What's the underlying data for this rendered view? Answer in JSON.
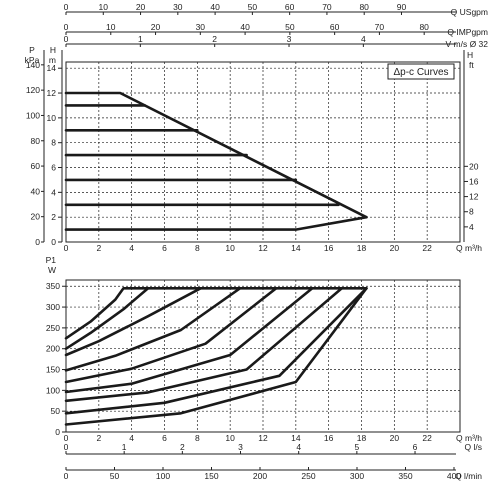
{
  "chart_data": [
    {
      "type": "line",
      "legend_box": "Δp-c Curves",
      "top_scales": [
        {
          "label": "Q USgpm",
          "ticks": [
            "0",
            "10",
            "20",
            "30",
            "40",
            "50",
            "60",
            "70",
            "80",
            "90"
          ]
        },
        {
          "label": "Q IMPgpm",
          "ticks": [
            "0",
            "10",
            "20",
            "30",
            "40",
            "50",
            "60",
            "70",
            "80"
          ]
        },
        {
          "label": "V m/s Ø 32",
          "ticks": [
            "0",
            "1",
            "2",
            "3",
            "4"
          ]
        }
      ],
      "y_left_kpa": {
        "label": [
          "P",
          "kPa"
        ],
        "ticks": [
          "0",
          "20",
          "40",
          "60",
          "80",
          "100",
          "120",
          "140"
        ]
      },
      "y_left_m": {
        "label": [
          "H",
          "m"
        ],
        "ticks": [
          "0",
          "2",
          "4",
          "6",
          "8",
          "10",
          "12",
          "14"
        ],
        "ylim": [
          0,
          14.5
        ]
      },
      "y_right_ft": {
        "label": [
          "H",
          "ft"
        ],
        "ticks": [
          "4",
          "8",
          "12",
          "16",
          "20"
        ]
      },
      "x": {
        "label": "Q m³/h",
        "ticks": [
          "0",
          "2",
          "4",
          "6",
          "8",
          "10",
          "12",
          "14",
          "16",
          "18",
          "20",
          "22"
        ],
        "xlim": [
          0,
          24
        ]
      },
      "series": [
        {
          "points": [
            [
              0,
              12
            ],
            [
              3.3,
              12
            ],
            [
              18.3,
              2
            ]
          ]
        },
        {
          "points": [
            [
              0,
              11
            ],
            [
              4.8,
              11
            ]
          ]
        },
        {
          "points": [
            [
              0,
              9
            ],
            [
              8,
              9
            ]
          ]
        },
        {
          "points": [
            [
              0,
              7
            ],
            [
              11,
              7
            ]
          ]
        },
        {
          "points": [
            [
              0,
              5
            ],
            [
              14,
              5
            ]
          ]
        },
        {
          "points": [
            [
              0,
              3
            ],
            [
              16.6,
              3
            ]
          ]
        },
        {
          "points": [
            [
              0,
              1
            ],
            [
              14,
              1
            ],
            [
              18.3,
              2
            ]
          ]
        }
      ]
    },
    {
      "type": "line",
      "y": {
        "label": [
          "P1",
          "W"
        ],
        "ticks": [
          "0",
          "50",
          "100",
          "150",
          "200",
          "250",
          "300",
          "350"
        ],
        "ylim": [
          0,
          365
        ]
      },
      "x": {
        "label": "Q m³/h",
        "ticks": [
          "0",
          "2",
          "4",
          "6",
          "8",
          "10",
          "12",
          "14",
          "16",
          "18",
          "20",
          "22"
        ],
        "xlim": [
          0,
          24
        ]
      },
      "bottom_scales": [
        {
          "label": "Q l/s",
          "ticks": [
            "0",
            "1",
            "2",
            "3",
            "4",
            "5",
            "6"
          ]
        },
        {
          "label": "Q l/min",
          "ticks": [
            "0",
            "50",
            "100",
            "150",
            "200",
            "250",
            "300",
            "350",
            "400"
          ]
        }
      ],
      "series": [
        {
          "points": [
            [
              0,
              225
            ],
            [
              1.5,
              265
            ],
            [
              3,
              318
            ],
            [
              3.5,
              345
            ],
            [
              18.3,
              345
            ]
          ]
        },
        {
          "points": [
            [
              0,
              200
            ],
            [
              1.5,
              238
            ],
            [
              3.5,
              295
            ],
            [
              5,
              345
            ]
          ]
        },
        {
          "points": [
            [
              0,
              185
            ],
            [
              2,
              218
            ],
            [
              5,
              278
            ],
            [
              8.2,
              345
            ]
          ]
        },
        {
          "points": [
            [
              0,
              148
            ],
            [
              3,
              183
            ],
            [
              7,
              245
            ],
            [
              10.6,
              345
            ]
          ]
        },
        {
          "points": [
            [
              0,
              120
            ],
            [
              4,
              152
            ],
            [
              8.5,
              212
            ],
            [
              12.8,
              345
            ]
          ]
        },
        {
          "points": [
            [
              0,
              96
            ],
            [
              4,
              116
            ],
            [
              10,
              185
            ],
            [
              15,
              345
            ]
          ]
        },
        {
          "points": [
            [
              0,
              75
            ],
            [
              5,
              95
            ],
            [
              11,
              150
            ],
            [
              16.8,
              345
            ]
          ]
        },
        {
          "points": [
            [
              0,
              45
            ],
            [
              6,
              70
            ],
            [
              13,
              135
            ],
            [
              18.3,
              345
            ]
          ]
        },
        {
          "points": [
            [
              0,
              18
            ],
            [
              7,
              45
            ],
            [
              14,
              120
            ],
            [
              18.3,
              345
            ]
          ]
        }
      ]
    }
  ]
}
